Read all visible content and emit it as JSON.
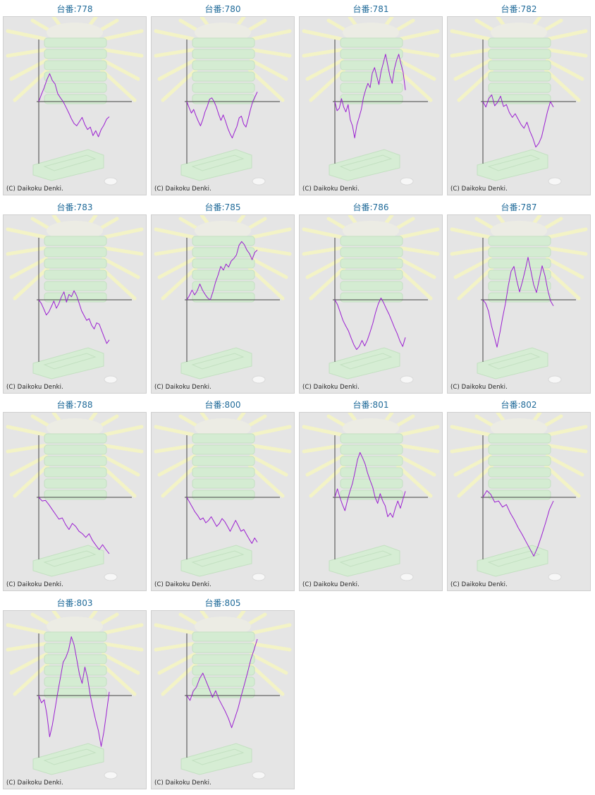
{
  "title_prefix": "台番:",
  "copyright": "(C) Daikoku Denki.",
  "colors": {
    "title": "#1f6a99",
    "line": "#9b1fd1",
    "background": "#e5e5e5",
    "axis": "#444444"
  },
  "chart_data": [
    {
      "type": "line",
      "machine": "778",
      "values": [
        0.0,
        0.12,
        0.23,
        0.36,
        0.46,
        0.35,
        0.29,
        0.13,
        0.06,
        0.0,
        -0.09,
        -0.18,
        -0.28,
        -0.36,
        -0.4,
        -0.33,
        -0.26,
        -0.38,
        -0.46,
        -0.42,
        -0.56,
        -0.48,
        -0.58,
        -0.46,
        -0.39,
        -0.29,
        -0.25
      ]
    },
    {
      "type": "line",
      "machine": "780",
      "values": [
        0.0,
        -0.1,
        -0.19,
        -0.13,
        -0.23,
        -0.32,
        -0.4,
        -0.3,
        -0.17,
        -0.08,
        0.04,
        0.06,
        0.0,
        -0.09,
        -0.21,
        -0.31,
        -0.22,
        -0.32,
        -0.44,
        -0.53,
        -0.6,
        -0.5,
        -0.41,
        -0.27,
        -0.24,
        -0.37,
        -0.42,
        -0.28,
        -0.13,
        0.0,
        0.08,
        0.16
      ]
    },
    {
      "type": "line",
      "machine": "781",
      "values": [
        0.0,
        -0.15,
        -0.11,
        0.05,
        -0.09,
        -0.17,
        -0.05,
        -0.3,
        -0.4,
        -0.6,
        -0.38,
        -0.26,
        -0.13,
        0.07,
        0.2,
        0.3,
        0.23,
        0.47,
        0.56,
        0.42,
        0.28,
        0.5,
        0.64,
        0.78,
        0.6,
        0.42,
        0.3,
        0.54,
        0.68,
        0.78,
        0.62,
        0.48,
        0.19
      ]
    },
    {
      "type": "line",
      "machine": "782",
      "values": [
        0.0,
        -0.09,
        0.05,
        0.11,
        -0.07,
        -0.01,
        0.09,
        -0.08,
        -0.05,
        -0.18,
        -0.26,
        -0.2,
        -0.29,
        -0.38,
        -0.44,
        -0.34,
        -0.49,
        -0.6,
        -0.75,
        -0.69,
        -0.58,
        -0.37,
        -0.16,
        0.0,
        -0.09
      ]
    },
    {
      "type": "line",
      "machine": "783",
      "values": [
        0.0,
        -0.06,
        -0.15,
        -0.25,
        -0.2,
        -0.11,
        -0.02,
        -0.14,
        -0.06,
        0.05,
        0.13,
        -0.04,
        0.09,
        0.05,
        0.15,
        0.07,
        -0.05,
        -0.18,
        -0.26,
        -0.34,
        -0.31,
        -0.42,
        -0.48,
        -0.38,
        -0.4,
        -0.51,
        -0.62,
        -0.72,
        -0.66
      ]
    },
    {
      "type": "line",
      "machine": "785",
      "values": [
        0.0,
        0.07,
        0.16,
        0.08,
        0.15,
        0.26,
        0.16,
        0.09,
        0.03,
        0.0,
        0.13,
        0.29,
        0.41,
        0.55,
        0.49,
        0.59,
        0.54,
        0.64,
        0.68,
        0.74,
        0.9,
        0.96,
        0.91,
        0.82,
        0.76,
        0.66,
        0.78,
        0.82
      ]
    },
    {
      "type": "line",
      "machine": "786",
      "values": [
        0.0,
        -0.08,
        -0.21,
        -0.34,
        -0.43,
        -0.51,
        -0.63,
        -0.74,
        -0.82,
        -0.77,
        -0.67,
        -0.76,
        -0.66,
        -0.53,
        -0.39,
        -0.21,
        -0.07,
        0.03,
        -0.05,
        -0.15,
        -0.24,
        -0.35,
        -0.46,
        -0.56,
        -0.68,
        -0.77,
        -0.62
      ]
    },
    {
      "type": "line",
      "machine": "787",
      "values": [
        0.0,
        -0.06,
        -0.19,
        -0.42,
        -0.6,
        -0.78,
        -0.55,
        -0.29,
        -0.06,
        0.23,
        0.47,
        0.55,
        0.32,
        0.13,
        0.3,
        0.49,
        0.7,
        0.48,
        0.25,
        0.12,
        0.34,
        0.56,
        0.4,
        0.16,
        -0.02,
        -0.1
      ]
    },
    {
      "type": "line",
      "machine": "788",
      "values": [
        0.0,
        -0.06,
        -0.05,
        -0.12,
        -0.2,
        -0.28,
        -0.36,
        -0.34,
        -0.45,
        -0.53,
        -0.43,
        -0.48,
        -0.56,
        -0.6,
        -0.66,
        -0.6,
        -0.71,
        -0.79,
        -0.86,
        -0.78,
        -0.86,
        -0.93
      ]
    },
    {
      "type": "line",
      "machine": "800",
      "values": [
        0.0,
        -0.08,
        -0.16,
        -0.24,
        -0.3,
        -0.37,
        -0.34,
        -0.42,
        -0.38,
        -0.32,
        -0.4,
        -0.48,
        -0.43,
        -0.35,
        -0.4,
        -0.48,
        -0.56,
        -0.47,
        -0.38,
        -0.47,
        -0.56,
        -0.53,
        -0.61,
        -0.69,
        -0.76,
        -0.67,
        -0.74
      ]
    },
    {
      "type": "line",
      "machine": "801",
      "values": [
        0.0,
        0.14,
        0.0,
        -0.12,
        -0.22,
        -0.05,
        0.1,
        0.23,
        0.42,
        0.62,
        0.74,
        0.65,
        0.55,
        0.4,
        0.28,
        0.17,
        0.0,
        -0.1,
        0.06,
        -0.06,
        -0.14,
        -0.32,
        -0.26,
        -0.33,
        -0.18,
        -0.06,
        -0.18,
        -0.04,
        0.1
      ]
    },
    {
      "type": "line",
      "machine": "802",
      "values": [
        0.0,
        0.11,
        0.05,
        -0.08,
        -0.06,
        -0.16,
        -0.12,
        -0.26,
        -0.37,
        -0.5,
        -0.61,
        -0.73,
        -0.85,
        -0.97,
        -0.82,
        -0.63,
        -0.42,
        -0.2,
        -0.06
      ]
    },
    {
      "type": "line",
      "machine": "803",
      "values": [
        0.0,
        -0.12,
        -0.07,
        -0.31,
        -0.68,
        -0.49,
        -0.22,
        0.05,
        0.3,
        0.55,
        0.63,
        0.75,
        0.97,
        0.84,
        0.6,
        0.35,
        0.2,
        0.47,
        0.29,
        0.0,
        -0.21,
        -0.41,
        -0.58,
        -0.84,
        -0.6,
        -0.27,
        0.06
      ]
    },
    {
      "type": "line",
      "machine": "805",
      "values": [
        0.0,
        -0.08,
        0.07,
        0.14,
        0.28,
        0.37,
        0.24,
        0.11,
        -0.03,
        0.08,
        -0.06,
        -0.16,
        -0.26,
        -0.38,
        -0.53,
        -0.37,
        -0.21,
        0.0,
        0.19,
        0.39,
        0.6,
        0.76,
        0.93
      ]
    }
  ]
}
